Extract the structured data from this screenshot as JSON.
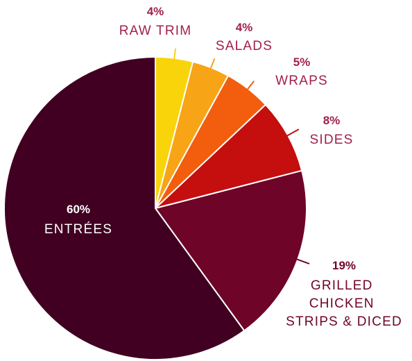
{
  "chart_data": {
    "type": "pie",
    "start_angle_deg": 0,
    "direction": "clockwise",
    "slices": [
      {
        "label": "RAW TRIM",
        "value": 4,
        "display": "4%",
        "color": "#f9d40a",
        "label_color": "#a11f4c"
      },
      {
        "label": "SALADS",
        "value": 4,
        "display": "4%",
        "color": "#f7a416",
        "label_color": "#a11f4c"
      },
      {
        "label": "WRAPS",
        "value": 5,
        "display": "5%",
        "color": "#f25e0d",
        "label_color": "#a11f4c"
      },
      {
        "label": "SIDES",
        "value": 8,
        "display": "8%",
        "color": "#c50f0f",
        "label_color": "#a11f4c"
      },
      {
        "label": "GRILLED CHICKEN STRIPS & DICED",
        "value": 19,
        "display": "19%",
        "color": "#6e0428",
        "label_color": "#6e0428"
      },
      {
        "label": "ENTRÉES",
        "value": 60,
        "display": "60%",
        "color": "#410022",
        "label_color": "#ffffff"
      }
    ],
    "legend": "none",
    "label_style": "callout"
  }
}
